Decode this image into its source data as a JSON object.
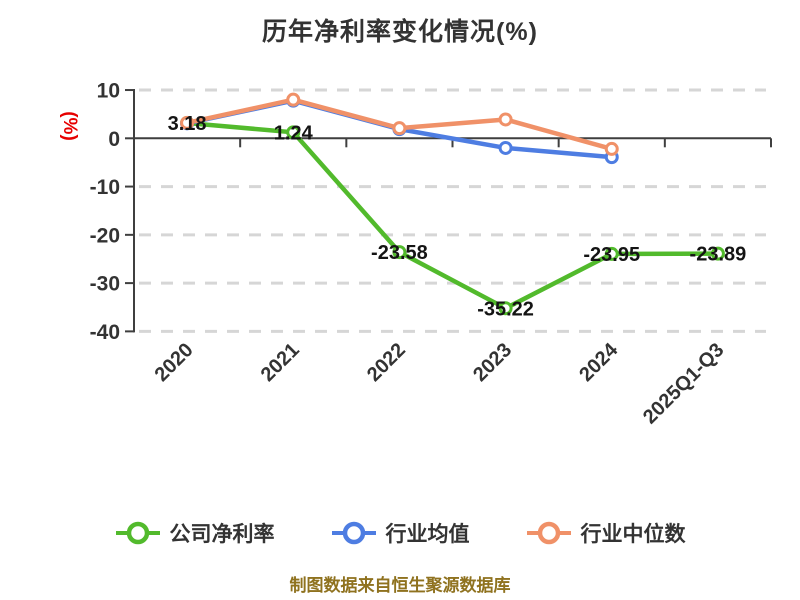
{
  "chart_data": {
    "type": "line",
    "title": "历年净利率变化情况(%)",
    "ylabel": "(%)",
    "footer": "制图数据来自恒生聚源数据库",
    "categories": [
      "2020",
      "2021",
      "2022",
      "2023",
      "2024",
      "2025Q1-Q3"
    ],
    "yticks": [
      10,
      0,
      -10,
      -20,
      -30,
      -40
    ],
    "ylim": [
      -40,
      10
    ],
    "grid": "horizontal-dashed",
    "legend_position": "bottom",
    "series": [
      {
        "name": "公司净利率",
        "color": "#52ba2c",
        "values": [
          3.18,
          1.24,
          -23.58,
          -35.22,
          -23.95,
          -23.89
        ],
        "labels": [
          "3.18",
          "1.24",
          "-23.58",
          "-35.22",
          "-23.95",
          "-23.89"
        ]
      },
      {
        "name": "行业均值",
        "color": "#4e7de2",
        "values": [
          3.1,
          7.8,
          1.9,
          -2.0,
          -3.9,
          null
        ],
        "labels": null
      },
      {
        "name": "行业中位数",
        "color": "#f09168",
        "values": [
          3.2,
          8.0,
          2.1,
          3.9,
          -2.2,
          null
        ],
        "labels": null
      }
    ],
    "colors": {
      "axis": "#3f3f3f",
      "grid": "#d6d6d6",
      "tick_text": "#333333",
      "ylabel_red": "#e60000",
      "footer_gold": "#8f721f",
      "marker_fill": "#ffffff"
    }
  }
}
